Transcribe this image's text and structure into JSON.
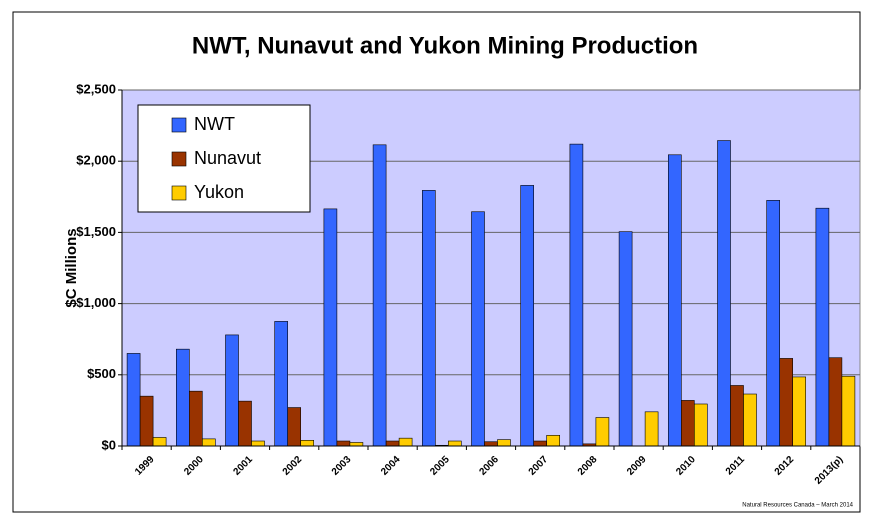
{
  "chart_data": {
    "type": "bar",
    "title": "NWT, Nunavut and Yukon Mining Production",
    "y_label": "$C Millions",
    "source": "Natural Resources Canada – March 2014",
    "categories": [
      "1999",
      "2000",
      "2001",
      "2002",
      "2003",
      "2004",
      "2005",
      "2006",
      "2007",
      "2008",
      "2009",
      "2010",
      "2011",
      "2012",
      "2013(p)"
    ],
    "series": [
      {
        "name": "NWT",
        "color": "#3366ff",
        "values": [
          650,
          680,
          780,
          875,
          1665,
          2115,
          1795,
          1645,
          1830,
          2120,
          1505,
          2045,
          2145,
          1725,
          1670
        ]
      },
      {
        "name": "Nunavut",
        "color": "#993300",
        "values": [
          350,
          385,
          315,
          270,
          35,
          35,
          5,
          30,
          35,
          15,
          0,
          320,
          425,
          615,
          620
        ]
      },
      {
        "name": "Yukon",
        "color": "#ffcc00",
        "values": [
          60,
          50,
          35,
          40,
          25,
          55,
          35,
          45,
          75,
          200,
          240,
          295,
          365,
          485,
          490
        ]
      }
    ],
    "ylim": [
      0,
      2500
    ],
    "yticks": [
      {
        "value": 0,
        "label": "$0"
      },
      {
        "value": 500,
        "label": "$500"
      },
      {
        "value": 1000,
        "label": "$1,000"
      },
      {
        "value": 1500,
        "label": "$1,500"
      },
      {
        "value": 2000,
        "label": "$2,000"
      },
      {
        "value": 2500,
        "label": "$2,500"
      }
    ],
    "grid": true,
    "legend": "upper left",
    "plot_background": "#ccccff"
  }
}
